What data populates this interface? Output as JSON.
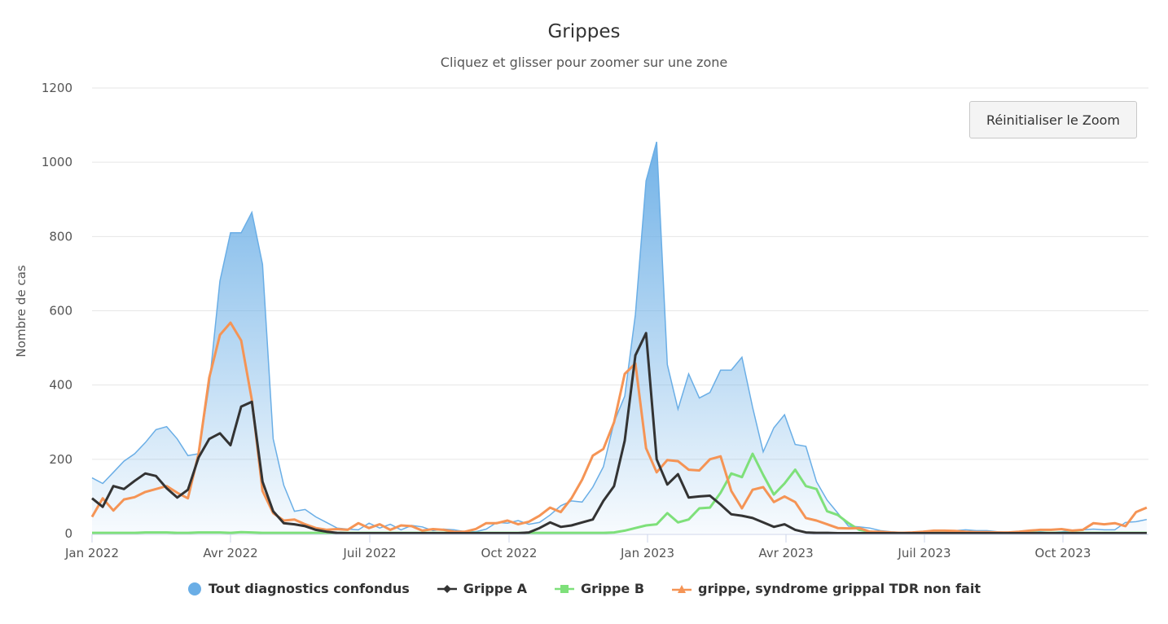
{
  "title": "Grippes",
  "subtitle": "Cliquez et glisser pour zoomer sur une zone",
  "reset_zoom_label": "Réinitialiser le Zoom",
  "y_axis": {
    "label": "Nombre de cas",
    "ticks": [
      "0",
      "200",
      "400",
      "600",
      "800",
      "1000",
      "1200"
    ]
  },
  "x_axis": {
    "ticks": [
      "Jan 2022",
      "Avr 2022",
      "Juil 2022",
      "Oct 2022",
      "Jan 2023",
      "Avr 2023",
      "Juil 2023",
      "Oct 2023"
    ]
  },
  "legend": [
    {
      "name": "Tout diagnostics confondus",
      "color": "#6aaee6",
      "marker": "circle"
    },
    {
      "name": "Grippe A",
      "color": "#333333",
      "marker": "diamond"
    },
    {
      "name": "Grippe B",
      "color": "#7ee07a",
      "marker": "square"
    },
    {
      "name": "grippe, syndrome grippal TDR non fait",
      "color": "#f59455",
      "marker": "triangle"
    }
  ],
  "chart_data": {
    "type": "line",
    "title": "Grippes",
    "subtitle": "Cliquez et glisser pour zoomer sur une zone",
    "xlabel": "",
    "ylabel": "Nombre de cas",
    "ylim": [
      0,
      1200
    ],
    "grid": true,
    "legend_position": "bottom",
    "x_start": "2022-01-03",
    "x_step": "1 week",
    "x_tick_labels": [
      "Jan 2022",
      "Avr 2022",
      "Juil 2022",
      "Oct 2022",
      "Jan 2023",
      "Avr 2023",
      "Juil 2023",
      "Oct 2023"
    ],
    "series": [
      {
        "name": "Tout diagnostics confondus",
        "type": "area",
        "color": "#6aaee6",
        "values": [
          150,
          135,
          165,
          195,
          215,
          245,
          280,
          288,
          255,
          210,
          215,
          400,
          680,
          810,
          810,
          865,
          725,
          255,
          130,
          60,
          65,
          45,
          30,
          15,
          12,
          10,
          28,
          15,
          25,
          10,
          22,
          18,
          8,
          12,
          10,
          5,
          5,
          12,
          30,
          28,
          35,
          25,
          30,
          50,
          75,
          88,
          85,
          125,
          180,
          300,
          370,
          590,
          950,
          1055,
          455,
          335,
          430,
          365,
          380,
          440,
          440,
          475,
          340,
          220,
          285,
          320,
          240,
          235,
          140,
          90,
          55,
          20,
          18,
          15,
          8,
          5,
          3,
          2,
          2,
          3,
          5,
          8,
          10,
          8,
          8,
          5,
          3,
          3,
          4,
          5,
          3,
          5,
          8,
          10,
          12,
          10,
          10,
          30,
          32,
          38,
          25,
          75,
          90
        ],
        "marker": "circle"
      },
      {
        "name": "Grippe A",
        "type": "line",
        "color": "#333333",
        "values": [
          95,
          72,
          128,
          120,
          142,
          162,
          155,
          122,
          97,
          118,
          205,
          255,
          270,
          238,
          342,
          355,
          140,
          60,
          28,
          25,
          20,
          10,
          5,
          2,
          1,
          1,
          1,
          1,
          1,
          1,
          1,
          1,
          1,
          1,
          1,
          1,
          1,
          1,
          1,
          1,
          1,
          3,
          15,
          30,
          18,
          22,
          30,
          38,
          88,
          128,
          250,
          480,
          540,
          200,
          132,
          160,
          97,
          100,
          102,
          78,
          52,
          48,
          42,
          30,
          18,
          25,
          10,
          3,
          2,
          2,
          1,
          1,
          1,
          1,
          1,
          1,
          1,
          1,
          1,
          1,
          1,
          1,
          1,
          1,
          1,
          1,
          1,
          1,
          1,
          1,
          1,
          1,
          1,
          1,
          1,
          1,
          1,
          1,
          1,
          1,
          1,
          8,
          10
        ],
        "marker": "diamond"
      },
      {
        "name": "Grippe B",
        "type": "line",
        "color": "#7ee07a",
        "values": [
          2,
          2,
          2,
          2,
          2,
          3,
          3,
          3,
          2,
          2,
          3,
          3,
          3,
          2,
          4,
          3,
          2,
          2,
          2,
          2,
          2,
          2,
          2,
          2,
          2,
          2,
          2,
          2,
          2,
          2,
          2,
          2,
          2,
          2,
          2,
          2,
          2,
          2,
          2,
          2,
          2,
          2,
          2,
          2,
          2,
          2,
          2,
          2,
          2,
          3,
          8,
          15,
          22,
          25,
          55,
          30,
          38,
          68,
          70,
          110,
          162,
          152,
          215,
          158,
          105,
          135,
          172,
          128,
          120,
          60,
          50,
          28,
          10,
          5,
          3,
          2,
          2,
          2,
          2,
          2,
          2,
          2,
          2,
          2,
          2,
          2,
          2,
          2,
          2,
          2,
          2,
          2,
          2,
          2,
          2,
          2,
          2,
          2,
          2,
          2,
          2,
          3,
          3
        ],
        "marker": "square"
      },
      {
        "name": "grippe, syndrome grippal TDR non fait",
        "type": "line",
        "color": "#f59455",
        "values": [
          45,
          95,
          62,
          92,
          98,
          112,
          120,
          128,
          110,
          95,
          215,
          420,
          535,
          568,
          520,
          360,
          115,
          55,
          35,
          38,
          25,
          15,
          10,
          12,
          10,
          28,
          15,
          25,
          10,
          22,
          20,
          8,
          12,
          10,
          5,
          5,
          12,
          28,
          28,
          35,
          25,
          32,
          48,
          70,
          58,
          95,
          145,
          210,
          228,
          300,
          430,
          458,
          230,
          165,
          198,
          195,
          172,
          170,
          200,
          208,
          115,
          68,
          118,
          125,
          85,
          100,
          85,
          42,
          35,
          25,
          15,
          14,
          15,
          5,
          5,
          3,
          2,
          3,
          5,
          8,
          8,
          7,
          5,
          4,
          4,
          3,
          3,
          5,
          8,
          10,
          10,
          12,
          8,
          10,
          28,
          25,
          28,
          20,
          58,
          70,
          70,
          70,
          70
        ],
        "marker": "triangle"
      }
    ]
  }
}
